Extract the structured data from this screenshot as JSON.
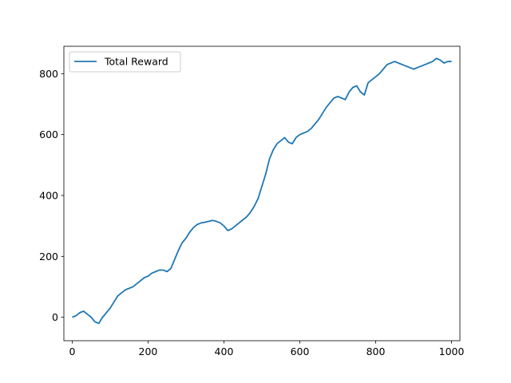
{
  "chart_data": {
    "type": "line",
    "title": "",
    "xlabel": "",
    "ylabel": "",
    "xlim": [
      -22,
      1022
    ],
    "ylim": [
      -77,
      890
    ],
    "xticks": [
      0,
      200,
      400,
      600,
      800,
      1000
    ],
    "yticks": [
      0,
      200,
      400,
      600,
      800
    ],
    "grid": false,
    "legend_position": "top-left",
    "series": [
      {
        "name": "Total Reward",
        "color": "#1f77b4",
        "x": [
          0,
          10,
          20,
          30,
          40,
          50,
          60,
          70,
          80,
          90,
          100,
          110,
          120,
          130,
          140,
          150,
          160,
          170,
          180,
          190,
          200,
          210,
          220,
          230,
          240,
          250,
          260,
          270,
          280,
          290,
          300,
          310,
          320,
          330,
          340,
          350,
          360,
          370,
          380,
          390,
          400,
          410,
          420,
          430,
          440,
          450,
          460,
          470,
          480,
          490,
          500,
          510,
          520,
          530,
          540,
          550,
          560,
          570,
          580,
          590,
          600,
          610,
          620,
          630,
          640,
          650,
          660,
          670,
          680,
          690,
          700,
          710,
          720,
          730,
          740,
          750,
          760,
          770,
          780,
          790,
          800,
          810,
          820,
          830,
          840,
          850,
          860,
          870,
          880,
          890,
          900,
          910,
          920,
          930,
          940,
          950,
          960,
          970,
          980,
          990,
          1000
        ],
        "y": [
          0,
          5,
          15,
          20,
          10,
          0,
          -15,
          -20,
          0,
          15,
          30,
          50,
          70,
          80,
          90,
          95,
          100,
          110,
          120,
          130,
          135,
          145,
          150,
          155,
          155,
          150,
          160,
          190,
          220,
          245,
          260,
          280,
          295,
          305,
          310,
          312,
          315,
          318,
          315,
          310,
          300,
          285,
          290,
          300,
          310,
          320,
          330,
          345,
          365,
          390,
          430,
          470,
          520,
          550,
          570,
          580,
          590,
          575,
          570,
          590,
          600,
          605,
          610,
          620,
          635,
          650,
          670,
          690,
          705,
          720,
          725,
          720,
          715,
          740,
          755,
          760,
          740,
          730,
          770,
          780,
          790,
          800,
          815,
          830,
          835,
          840,
          835,
          830,
          825,
          820,
          815,
          820,
          825,
          830,
          835,
          840,
          850,
          845,
          835,
          840,
          840
        ]
      }
    ]
  }
}
